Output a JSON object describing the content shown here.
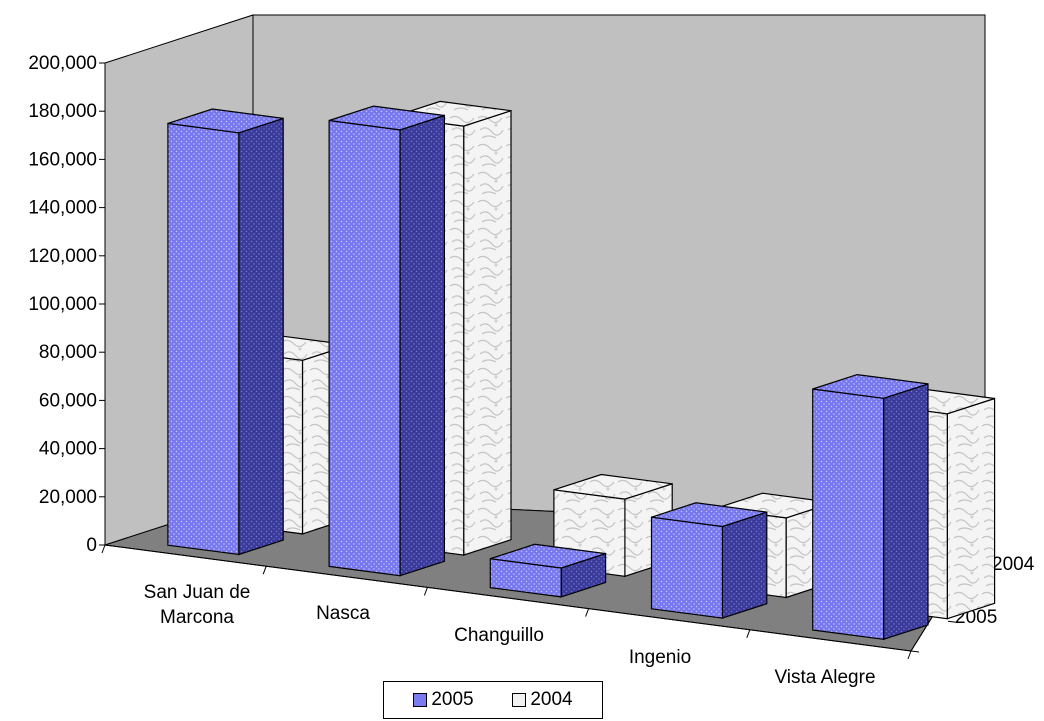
{
  "chart_data": {
    "type": "bar",
    "subtype": "3d-column",
    "title": "",
    "xlabel": "",
    "ylabel": "",
    "ylim": [
      0,
      200000
    ],
    "y_ticks": [
      "0",
      "20,000",
      "40,000",
      "60,000",
      "80,000",
      "100,000",
      "120,000",
      "140,000",
      "160,000",
      "180,000",
      "200,000"
    ],
    "categories": [
      "San Juan de Marcona",
      "Nasca",
      "Changuillo",
      "Ingenio",
      "Vista Alegre"
    ],
    "category_labels": [
      [
        "San Juan de",
        "Marcona"
      ],
      [
        "Nasca"
      ],
      [
        "Changuillo"
      ],
      [
        "Ingenio"
      ],
      [
        "Vista Alegre"
      ]
    ],
    "depth_labels": [
      "2004",
      "2005"
    ],
    "series": [
      {
        "name": "2005",
        "values": [
          175000,
          185000,
          12000,
          38000,
          100000
        ],
        "color": "#7b7bf0"
      },
      {
        "name": "2004",
        "values": [
          72000,
          178000,
          32000,
          33000,
          85000
        ],
        "color": "#f2f2f2"
      }
    ],
    "walls": {
      "back": "#c0c0c0",
      "floor": "#808080"
    },
    "grid": false,
    "legend_position": "bottom"
  }
}
